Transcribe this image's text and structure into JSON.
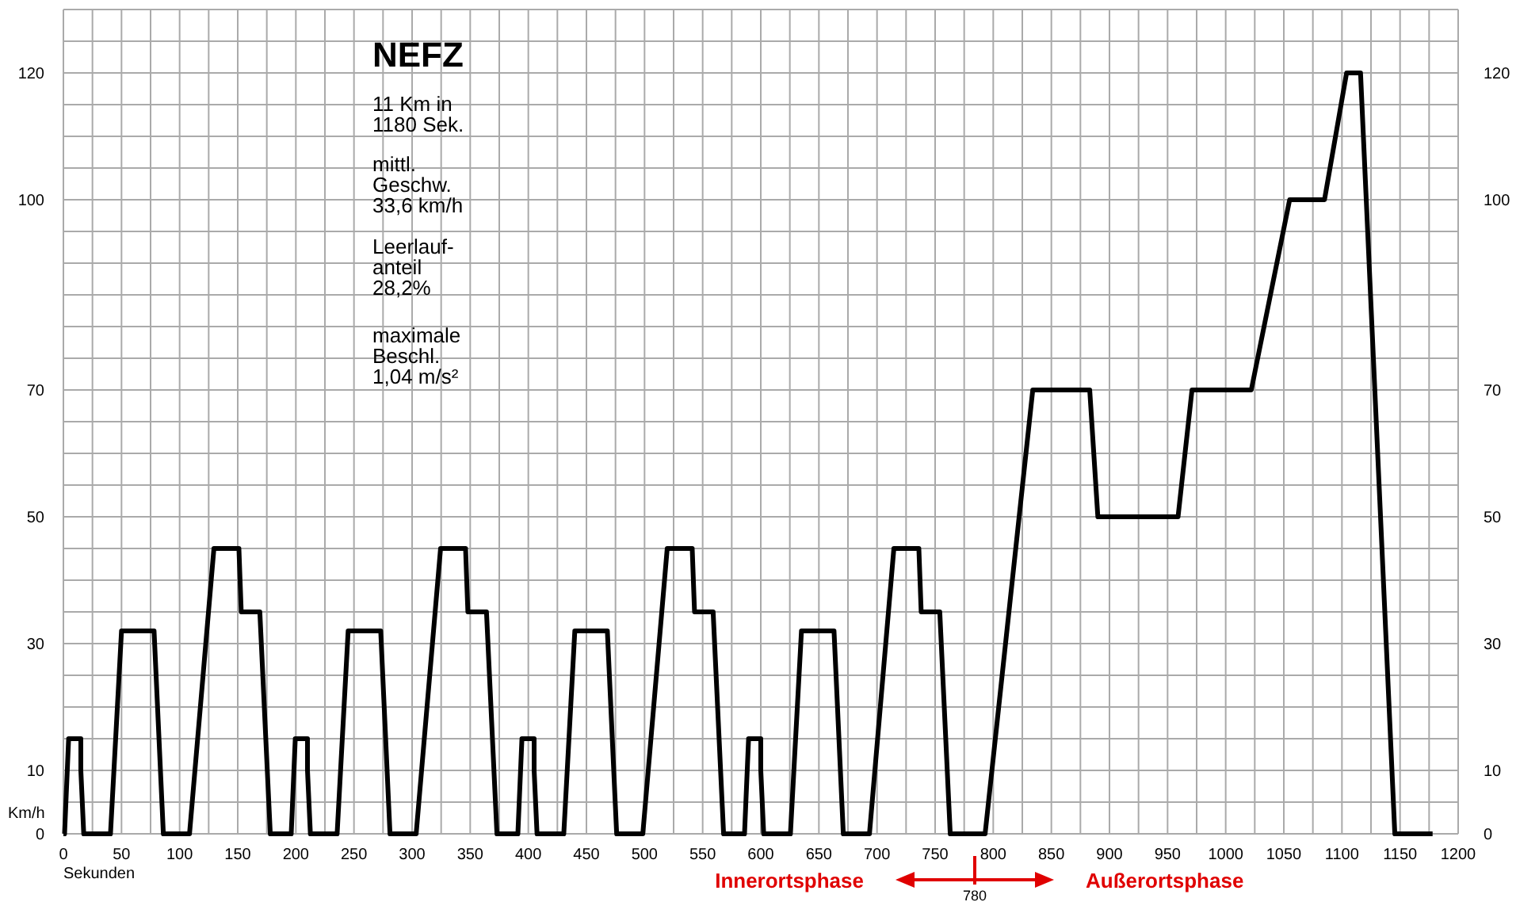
{
  "chart_data": {
    "type": "line",
    "title": "NEFZ",
    "xlabel": "Sekunden",
    "ylabel": "Km/h",
    "annotations": [
      "11 Km in\n1180 Sek.",
      "mittl.\nGeschw.\n33,6 km/h",
      "Leerlauf-\nanteil\n28,2%",
      "maximale\nBeschl.\n1,04 m/s²",
      "Innerortsphase",
      "Außerortsphase",
      "780"
    ],
    "series": [
      {
        "color": "#000000",
        "x": [
          0,
          1,
          4.5,
          15,
          15,
          17.5,
          40.5,
          50,
          78,
          86,
          108.5,
          129.5,
          151,
          153,
          169,
          178,
          196,
          199.5,
          210,
          210,
          212.5,
          235.5,
          245,
          273,
          281,
          303.5,
          324.5,
          346,
          348,
          364,
          373,
          391,
          394.5,
          405,
          405,
          407.5,
          430.5,
          440,
          468,
          476,
          498.5,
          519.5,
          541,
          543,
          559,
          568,
          586,
          589.5,
          600,
          600,
          602.5,
          625.5,
          635,
          663,
          671,
          693.5,
          714.5,
          736,
          738,
          754,
          763,
          793,
          834,
          883,
          890,
          959,
          971,
          1022,
          1055,
          1085,
          1104,
          1116,
          1145.5,
          1178
        ],
        "values": [
          0,
          0,
          15,
          15,
          10,
          0,
          0,
          32,
          32,
          0,
          0,
          45,
          45,
          35,
          35,
          0,
          0,
          15,
          15,
          10,
          0,
          0,
          32,
          32,
          0,
          0,
          45,
          45,
          35,
          35,
          0,
          0,
          15,
          15,
          10,
          0,
          0,
          32,
          32,
          0,
          0,
          45,
          45,
          35,
          35,
          0,
          0,
          15,
          15,
          10,
          0,
          0,
          32,
          32,
          0,
          0,
          45,
          45,
          35,
          35,
          0,
          0,
          70,
          70,
          50,
          50,
          70,
          70,
          100,
          100,
          120,
          120,
          0,
          0
        ]
      }
    ],
    "xlim": [
      0,
      1200
    ],
    "xticks": [
      0,
      {
        "value": 25,
        "label": null
      },
      50,
      {
        "value": 75,
        "label": null
      },
      100,
      {
        "value": 125,
        "label": null
      },
      150,
      {
        "value": 175,
        "label": null
      },
      200,
      {
        "value": 225,
        "label": null
      },
      250,
      {
        "value": 275,
        "label": null
      },
      300,
      {
        "value": 325,
        "label": null
      },
      350,
      {
        "value": 375,
        "label": null
      },
      400,
      {
        "value": 425,
        "label": null
      },
      450,
      {
        "value": 475,
        "label": null
      },
      500,
      {
        "value": 525,
        "label": null
      },
      550,
      {
        "value": 575,
        "label": null
      },
      600,
      {
        "value": 625,
        "label": null
      },
      650,
      {
        "value": 675,
        "label": null
      },
      700,
      {
        "value": 725,
        "label": null
      },
      750,
      {
        "value": 775,
        "label": null
      },
      800,
      {
        "value": 825,
        "label": null
      },
      850,
      {
        "value": 875,
        "label": null
      },
      900,
      {
        "value": 925,
        "label": null
      },
      950,
      {
        "value": 975,
        "label": null
      },
      1000,
      {
        "value": 1025,
        "label": null
      },
      1050,
      {
        "value": 1075,
        "label": null
      },
      1100,
      {
        "value": 1125,
        "label": null
      },
      1150,
      {
        "value": 1175,
        "label": null
      },
      1200
    ],
    "ylim": [
      0,
      130
    ],
    "yticks": [
      0,
      {
        "value": 5,
        "label": null
      },
      10,
      {
        "value": 15,
        "label": null
      },
      {
        "value": 20,
        "label": null
      },
      {
        "value": 25,
        "label": null
      },
      30,
      {
        "value": 35,
        "label": null
      },
      {
        "value": 40,
        "label": null
      },
      {
        "value": 45,
        "label": null
      },
      50,
      {
        "value": 55,
        "label": null
      },
      {
        "value": 60,
        "label": null
      },
      {
        "value": 65,
        "label": null
      },
      70,
      {
        "value": 75,
        "label": null
      },
      {
        "value": 80,
        "label": null
      },
      {
        "value": 85,
        "label": null
      },
      {
        "value": 90,
        "label": null
      },
      {
        "value": 95,
        "label": null
      },
      100,
      {
        "value": 105,
        "label": null
      },
      {
        "value": 110,
        "label": null
      },
      {
        "value": 115,
        "label": null
      },
      120,
      {
        "value": 125,
        "label": null
      },
      {
        "value": 130,
        "label": null
      }
    ],
    "y2lim": [
      0,
      130
    ],
    "y2ticks": [
      0,
      10,
      30,
      50,
      70,
      100,
      120
    ],
    "grid": true,
    "marker": "none",
    "line_style": "solid"
  }
}
